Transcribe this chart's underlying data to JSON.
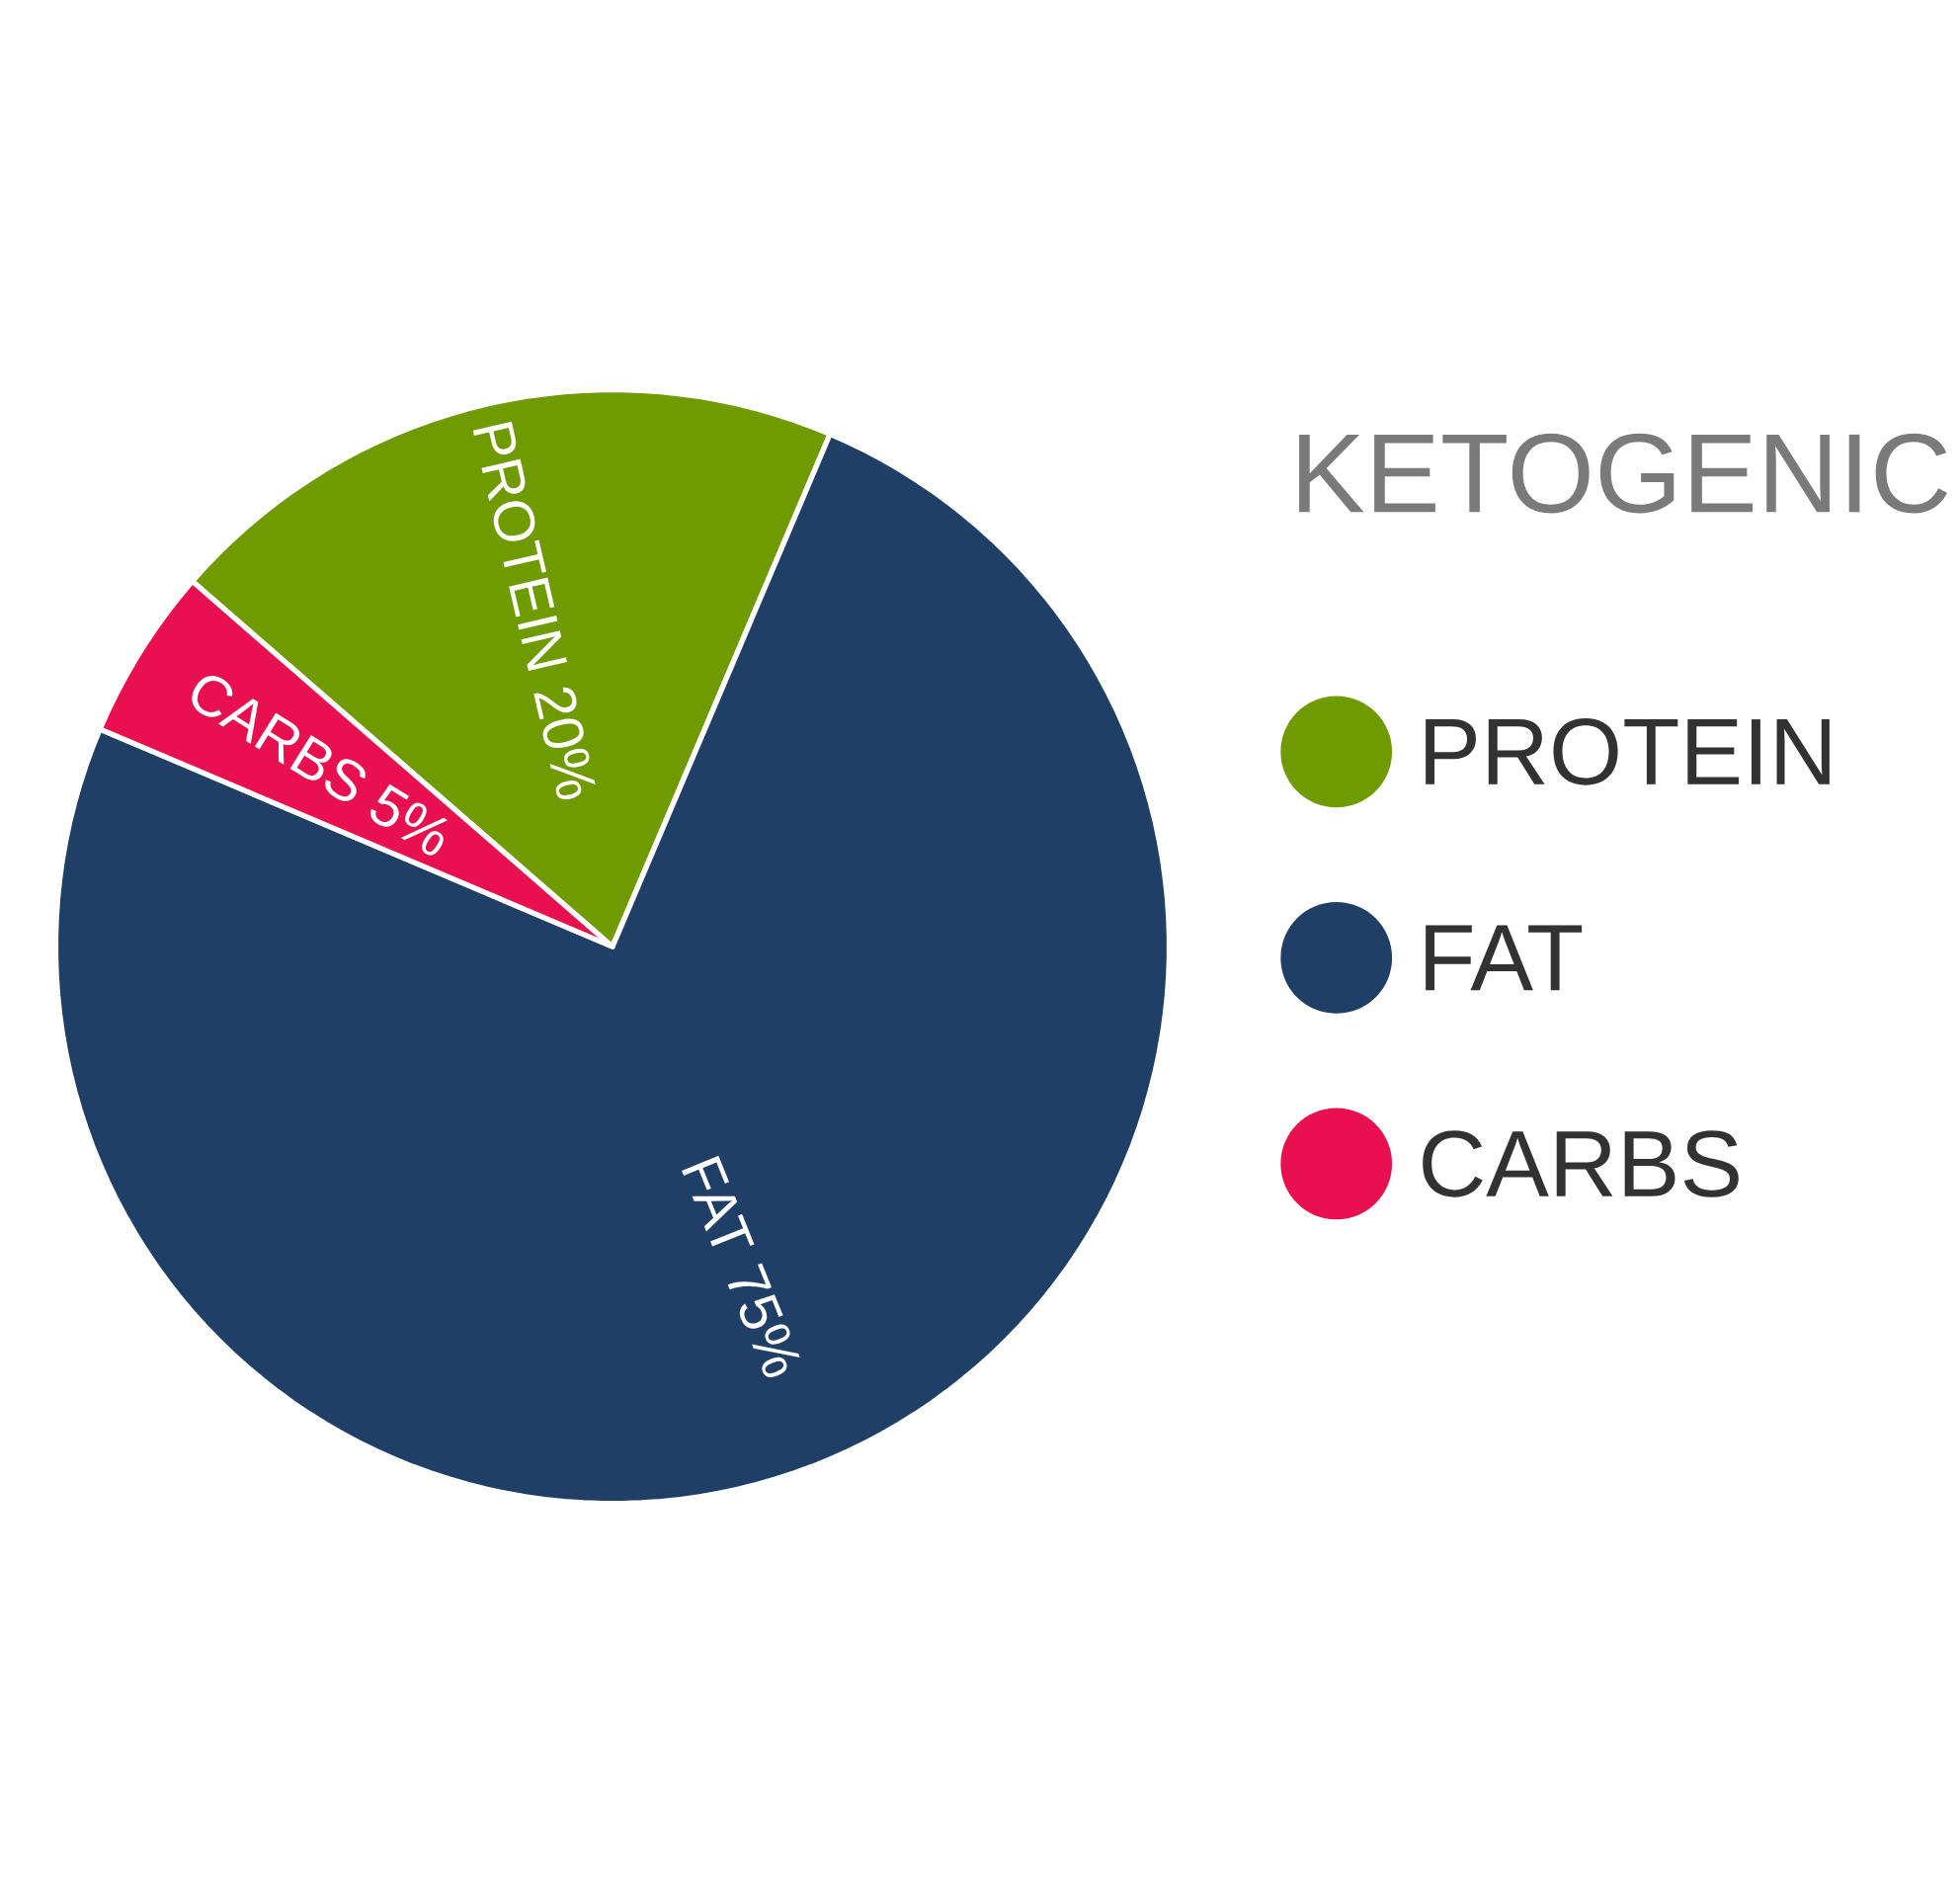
{
  "chart_data": {
    "type": "pie",
    "title": "KETOGENIC",
    "categories": [
      "PROTEIN",
      "FAT",
      "CARBS"
    ],
    "values": [
      20,
      75,
      5
    ],
    "colors": [
      "#6f9a00",
      "#1f3f66",
      "#e8104f"
    ],
    "value_labels": [
      "PROTEIN 20%",
      "FAT 75%",
      "CARBS 5%"
    ],
    "legend": "right"
  }
}
